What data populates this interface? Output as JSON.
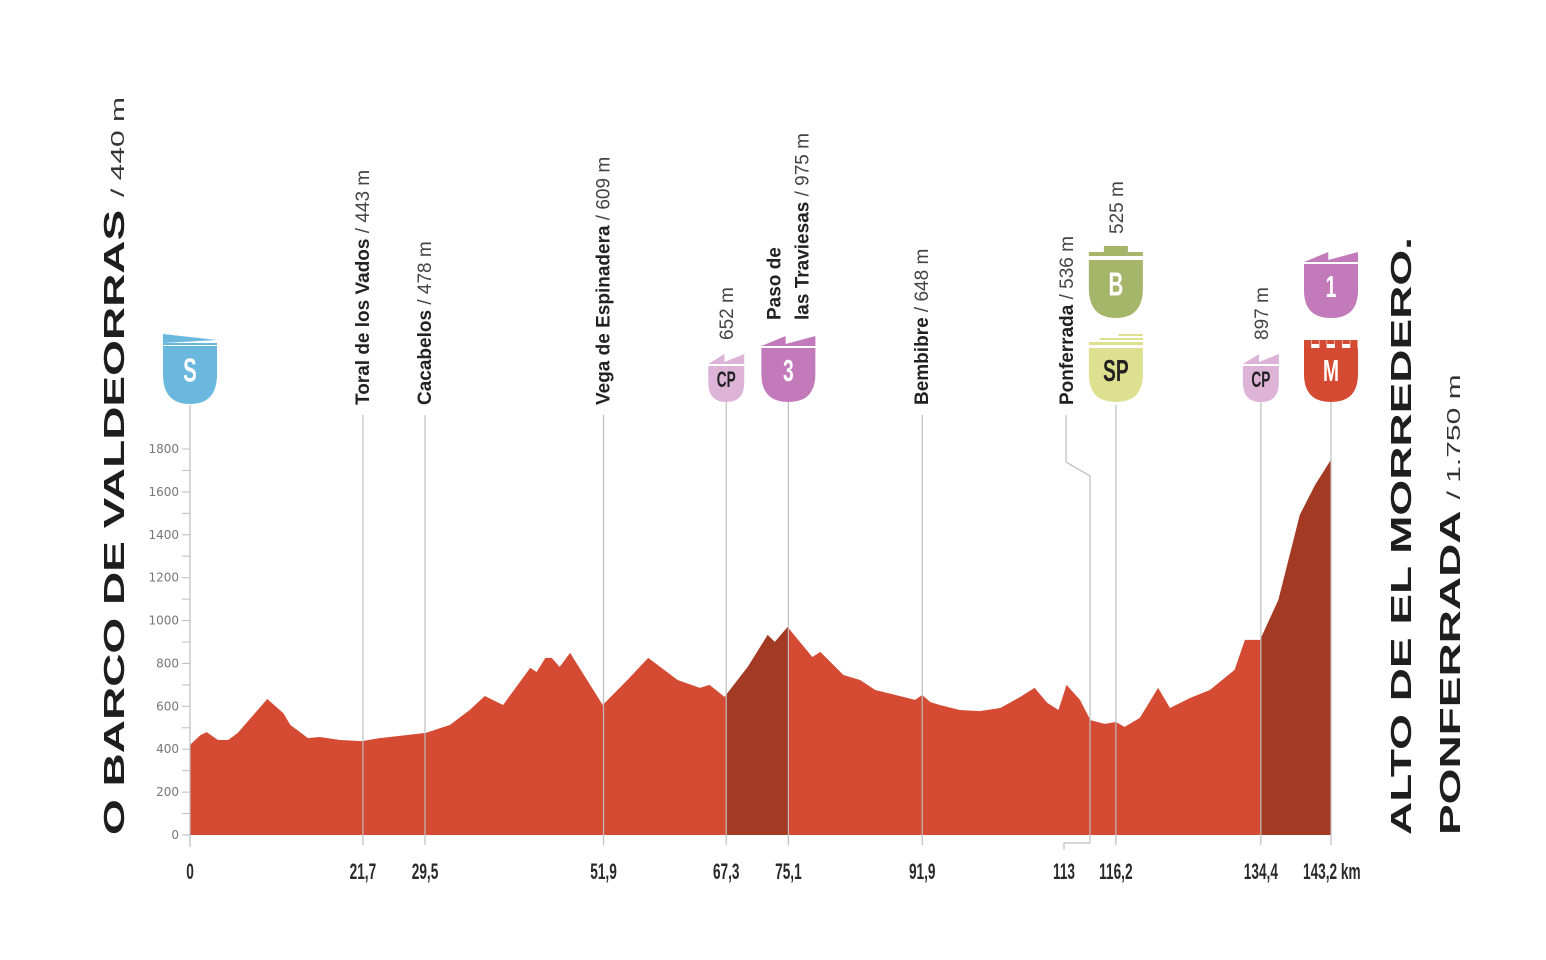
{
  "chart_data": {
    "type": "area",
    "title": "Stage profile: O Barco de Valdeorras – Alto de El Morredero. Ponferrada",
    "xlabel": "km",
    "ylabel": "m",
    "xlim": [
      0,
      143.2
    ],
    "ylim": [
      0,
      1800
    ],
    "grid": false,
    "y_ticks": [
      0,
      200,
      400,
      600,
      800,
      1000,
      1200,
      1400,
      1600,
      1800
    ],
    "x_ticks": [
      {
        "km": 0,
        "label": "0"
      },
      {
        "km": 21.7,
        "label": "21,7"
      },
      {
        "km": 29.5,
        "label": "29,5"
      },
      {
        "km": 51.9,
        "label": "51,9"
      },
      {
        "km": 67.3,
        "label": "67,3"
      },
      {
        "km": 75.1,
        "label": "75,1"
      },
      {
        "km": 91.9,
        "label": "91,9"
      },
      {
        "km": 113,
        "label": "113"
      },
      {
        "km": 116.2,
        "label": "116,2"
      },
      {
        "km": 134.4,
        "label": "134,4"
      },
      {
        "km": 143.2,
        "label": "143,2 km"
      }
    ],
    "start": {
      "name": "O BARCO DE VALDEORRAS",
      "elev": "/ 440 m"
    },
    "finish": {
      "line1": "ALTO DE EL MORREDERO.",
      "line2": "PONFERRADA",
      "elev": "/ 1.750 m"
    },
    "colors": {
      "profile": "#d44a32",
      "climb": "#a33a24",
      "axis": "#bdbdbd",
      "text": "#222222",
      "start_badge": "#6bb8de",
      "cp_badge": "#ddb3d8",
      "cat_badge": "#c27abb",
      "bonus_badge": "#a5b56a",
      "sprint_badge": "#dce08f",
      "finish_badge": "#d44a32"
    },
    "climb_segments": [
      [
        67.3,
        75.1
      ],
      [
        134.4,
        143.2
      ]
    ],
    "profile": [
      [
        0,
        420
      ],
      [
        1.3,
        466
      ],
      [
        2.1,
        480
      ],
      [
        3.5,
        443
      ],
      [
        4.8,
        443
      ],
      [
        6,
        476
      ],
      [
        9.7,
        634
      ],
      [
        11.7,
        569
      ],
      [
        12.6,
        513
      ],
      [
        13.8,
        480
      ],
      [
        14.8,
        452
      ],
      [
        16.3,
        457
      ],
      [
        18.8,
        443
      ],
      [
        21.6,
        438
      ],
      [
        23.8,
        452
      ],
      [
        29.6,
        476
      ],
      [
        32.6,
        513
      ],
      [
        35.1,
        583
      ],
      [
        37,
        648
      ],
      [
        39.3,
        606
      ],
      [
        42.7,
        779
      ],
      [
        43.5,
        760
      ],
      [
        44.6,
        826
      ],
      [
        45.4,
        826
      ],
      [
        46.4,
        784
      ],
      [
        47.7,
        849
      ],
      [
        51.8,
        606
      ],
      [
        54.9,
        723
      ],
      [
        57.5,
        826
      ],
      [
        61.2,
        723
      ],
      [
        64,
        686
      ],
      [
        65.2,
        700
      ],
      [
        67.1,
        644
      ],
      [
        70,
        784
      ],
      [
        72.5,
        933
      ],
      [
        73.4,
        900
      ],
      [
        75,
        970
      ],
      [
        78.1,
        830
      ],
      [
        79.1,
        854
      ],
      [
        82,
        746
      ],
      [
        84.1,
        723
      ],
      [
        86,
        676
      ],
      [
        91,
        630
      ],
      [
        91.9,
        653
      ],
      [
        92.9,
        620
      ],
      [
        94.1,
        606
      ],
      [
        96.6,
        583
      ],
      [
        99.1,
        578
      ],
      [
        101.7,
        592
      ],
      [
        104.2,
        644
      ],
      [
        106,
        686
      ],
      [
        107.6,
        616
      ],
      [
        109,
        583
      ],
      [
        110,
        700
      ],
      [
        111.7,
        630
      ],
      [
        113,
        536
      ],
      [
        114.8,
        518
      ],
      [
        116.2,
        527
      ],
      [
        117.3,
        504
      ],
      [
        119.2,
        546
      ],
      [
        121.5,
        686
      ],
      [
        123,
        592
      ],
      [
        125.5,
        639
      ],
      [
        128,
        676
      ],
      [
        131.1,
        770
      ],
      [
        132.4,
        910
      ],
      [
        134.3,
        910
      ],
      [
        136.6,
        1096
      ],
      [
        139.3,
        1493
      ],
      [
        141.2,
        1632
      ],
      [
        143.2,
        1750
      ]
    ],
    "waypoints": [
      {
        "km": 21.7,
        "name": "Toral de los Vados",
        "elev": " / 443 m"
      },
      {
        "km": 29.5,
        "name": "Cacabelos",
        "elev": " / 478 m"
      },
      {
        "km": 51.9,
        "name": "Vega de Espinadera",
        "elev": " / 609 m"
      },
      {
        "km": 67.3,
        "name": "",
        "elev": "652 m",
        "badge": "CP"
      },
      {
        "km": 75.1,
        "name": "Paso de|las Traviesas",
        "elev": " / 975 m",
        "badge": "3"
      },
      {
        "km": 91.9,
        "name": "Bembibre",
        "elev": " / 648 m"
      },
      {
        "km": 113,
        "name": "Ponferrada",
        "elev": " / 536 m"
      },
      {
        "km": 116.2,
        "name": "",
        "elev": "525 m",
        "badge": "SP",
        "badge2": "B"
      },
      {
        "km": 134.4,
        "name": "",
        "elev": "897 m",
        "badge": "CP"
      },
      {
        "km": 143.2,
        "name": "",
        "elev": "",
        "badge": "M",
        "badge2": "1"
      }
    ],
    "badges": {
      "start": "S",
      "cp": "CP",
      "cat3": "3",
      "bonus": "B",
      "sprint": "SP",
      "cat1": "1",
      "finish": "M"
    }
  }
}
